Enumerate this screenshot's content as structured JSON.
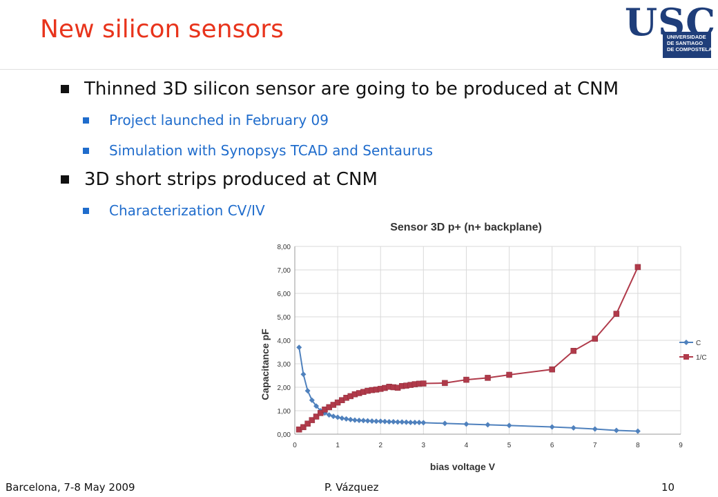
{
  "slide": {
    "title": "New silicon sensors",
    "bullets": [
      {
        "text": "Thinned 3D silicon sensor are going to be produced at CNM",
        "sub": [
          "Project launched in February 09",
          "Simulation with Synopsys TCAD and Sentaurus"
        ]
      },
      {
        "text": "3D short strips produced at CNM",
        "sub": [
          "Characterization CV/IV"
        ]
      }
    ],
    "footer": {
      "left": "Barcelona, 7-8 May 2009",
      "center": "P. Vázquez",
      "right": "10"
    }
  },
  "logo": {
    "text": "USC",
    "lines": [
      "UNIVERSIDADE",
      "DE SANTIAGO",
      "DE COMPOSTELA"
    ]
  },
  "colors": {
    "title": "#e8341c",
    "sub_bullet": "#1f6ccc",
    "logo": "#1f3e7a",
    "series_c": "#4f81bd",
    "series_inv": "#b03a4a"
  },
  "chart_data": {
    "type": "line",
    "title": "Sensor 3D p+ (n+ backplane)",
    "xlabel": "bias voltage V",
    "ylabel": "Capacitance pF",
    "xlim": [
      0,
      9
    ],
    "ylim": [
      0,
      8
    ],
    "x_ticks": [
      "0",
      "1",
      "2",
      "3",
      "4",
      "5",
      "6",
      "7",
      "8",
      "9"
    ],
    "y_ticks": [
      "0,00",
      "1,00",
      "2,00",
      "3,00",
      "4,00",
      "5,00",
      "6,00",
      "7,00",
      "8,00"
    ],
    "grid": true,
    "legend_position": "right",
    "series": [
      {
        "name": "C",
        "color": "#4f81bd",
        "marker": "diamond",
        "x": [
          0.1,
          0.2,
          0.3,
          0.4,
          0.5,
          0.6,
          0.7,
          0.8,
          0.9,
          1.0,
          1.1,
          1.2,
          1.3,
          1.4,
          1.5,
          1.6,
          1.7,
          1.8,
          1.9,
          2.0,
          2.1,
          2.2,
          2.3,
          2.4,
          2.5,
          2.6,
          2.7,
          2.8,
          2.9,
          3.0,
          3.5,
          4.0,
          4.5,
          5.0,
          6.0,
          6.5,
          7.0,
          7.5,
          8.0
        ],
        "y": [
          3.7,
          2.55,
          1.85,
          1.45,
          1.2,
          1.0,
          0.9,
          0.82,
          0.76,
          0.72,
          0.68,
          0.65,
          0.62,
          0.6,
          0.59,
          0.58,
          0.57,
          0.56,
          0.55,
          0.55,
          0.54,
          0.53,
          0.53,
          0.52,
          0.52,
          0.51,
          0.5,
          0.5,
          0.5,
          0.49,
          0.46,
          0.43,
          0.4,
          0.37,
          0.31,
          0.27,
          0.22,
          0.16,
          0.13
        ]
      },
      {
        "name": "1/C",
        "color": "#b03a4a",
        "marker": "square",
        "x": [
          0.1,
          0.2,
          0.3,
          0.4,
          0.5,
          0.6,
          0.7,
          0.8,
          0.9,
          1.0,
          1.1,
          1.2,
          1.3,
          1.4,
          1.5,
          1.6,
          1.7,
          1.8,
          1.9,
          2.0,
          2.1,
          2.2,
          2.3,
          2.4,
          2.5,
          2.6,
          2.7,
          2.8,
          2.9,
          3.0,
          3.5,
          4.0,
          4.5,
          5.0,
          6.0,
          6.5,
          7.0,
          7.5,
          8.0
        ],
        "y": [
          0.2,
          0.3,
          0.45,
          0.6,
          0.75,
          0.9,
          1.05,
          1.15,
          1.25,
          1.35,
          1.45,
          1.55,
          1.62,
          1.7,
          1.75,
          1.8,
          1.85,
          1.88,
          1.9,
          1.93,
          1.97,
          2.02,
          2.0,
          1.98,
          2.05,
          2.07,
          2.1,
          2.13,
          2.15,
          2.16,
          2.18,
          2.32,
          2.4,
          2.53,
          2.76,
          3.55,
          4.07,
          5.13,
          7.12
        ]
      }
    ]
  }
}
